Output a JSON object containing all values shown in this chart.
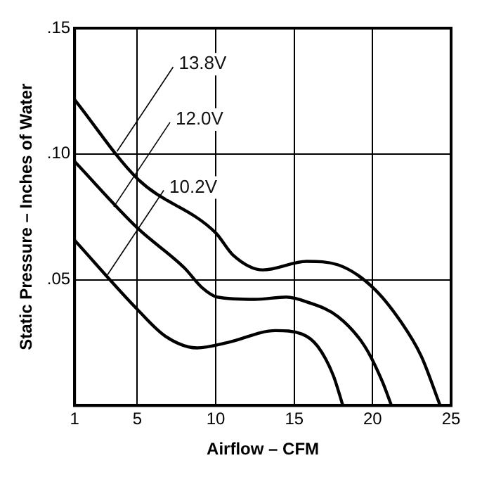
{
  "chart_data": {
    "type": "line",
    "xlabel": "Airflow – CFM",
    "ylabel": "Static Pressure – Inches of Water",
    "xlim": [
      1,
      25
    ],
    "xticks": [
      1,
      5,
      10,
      15,
      20,
      25
    ],
    "ylim": [
      0,
      0.15
    ],
    "yticks": [
      {
        "value": 0.05,
        "label": ".05"
      },
      {
        "value": 0.1,
        "label": ".10"
      },
      {
        "value": 0.15,
        "label": ".15"
      }
    ],
    "grid": true,
    "legend": false,
    "marker": "none",
    "line_style": "solid",
    "series": [
      {
        "color": "#000000",
        "x": [
          1,
          5,
          10,
          11.1,
          13,
          15.8,
          17.8,
          20,
          21.8,
          23.1,
          24.3
        ],
        "values": [
          0.1216,
          0.0902,
          0.0686,
          0.0598,
          0.0539,
          0.0573,
          0.0559,
          0.047,
          0.0333,
          0.0196,
          0
        ]
      },
      {
        "color": "#000000",
        "x": [
          1,
          5,
          8,
          9.1,
          10.1,
          12.5,
          14.5,
          15.8,
          17.8,
          19.5,
          20.6,
          21.2
        ],
        "values": [
          0.097,
          0.0706,
          0.0547,
          0.047,
          0.0431,
          0.0422,
          0.0431,
          0.0412,
          0.0353,
          0.0235,
          0.0098,
          0
        ]
      },
      {
        "color": "#000000",
        "x": [
          1,
          5,
          6.8,
          8.8,
          10.8,
          13.8,
          15.5,
          16.5,
          17.5,
          18.1
        ],
        "values": [
          0.0657,
          0.0382,
          0.0275,
          0.0229,
          0.0251,
          0.0298,
          0.0284,
          0.0235,
          0.0118,
          0
        ]
      }
    ],
    "annotations": [
      {
        "text": "13.8V",
        "x": 3.7,
        "y": 0.101
      },
      {
        "text": "12.0V",
        "x": 3.5,
        "y": 0.079
      },
      {
        "text": "10.2V",
        "x": 3.1,
        "y": 0.052
      }
    ]
  }
}
